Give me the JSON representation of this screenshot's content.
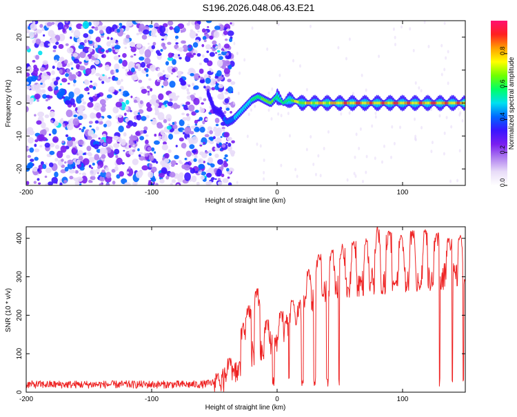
{
  "title": "S196.2026.048.06.43.E21",
  "chart_data": [
    {
      "type": "heatmap",
      "name": "spectrogram",
      "xlabel": "Height of straight line (km)",
      "ylabel": "Frequency (Hz)",
      "xlim": [
        -200,
        150
      ],
      "ylim": [
        -25,
        25
      ],
      "xticks": [
        -200,
        -100,
        0,
        100
      ],
      "yticks": [
        -20,
        -10,
        0,
        10,
        20
      ],
      "colorbar": {
        "label": "Normalized spectral amplitude",
        "range": [
          0,
          1
        ],
        "ticks": [
          0.0,
          0.2,
          0.4,
          0.6,
          0.8
        ],
        "tick_labels": [
          "0.0",
          "0.2",
          "0.4",
          "0.6",
          "0.8"
        ],
        "colors": [
          "#ffffff",
          "#e8dcf8",
          "#b080f0",
          "#7a1ff0",
          "#3a14ff",
          "#0066ff",
          "#00e0f0",
          "#00ff66",
          "#70ff00",
          "#ffff00",
          "#ffa000",
          "#ff2020",
          "#ff1070"
        ]
      },
      "ridge": {
        "x": [
          -55,
          -50,
          -45,
          -40,
          -35,
          -30,
          -25,
          -20,
          -15,
          -10,
          -5,
          0,
          5,
          10,
          20,
          30,
          40,
          50,
          60,
          70,
          80,
          90,
          100,
          110,
          120,
          130,
          140,
          150
        ],
        "y": [
          3,
          -2,
          -3,
          -6,
          -5,
          -3,
          -1,
          1,
          2,
          1,
          0,
          2,
          0,
          1,
          0,
          0,
          0,
          0,
          0,
          0,
          0,
          0,
          0,
          0,
          0,
          0,
          0,
          0
        ],
        "amplitude": [
          0.3,
          0.35,
          0.35,
          0.4,
          0.45,
          0.5,
          0.5,
          0.55,
          0.6,
          0.65,
          0.7,
          0.55,
          0.6,
          0.7,
          0.8,
          0.85,
          0.85,
          0.9,
          0.9,
          0.9,
          0.9,
          0.9,
          0.9,
          0.9,
          0.9,
          0.9,
          0.9,
          0.9
        ]
      },
      "noise_region_x": [
        -200,
        -35
      ]
    },
    {
      "type": "line",
      "name": "snr",
      "xlabel": "Height of straight line (km)",
      "ylabel": "SNR (10 * v/v)",
      "xlim": [
        -200,
        150
      ],
      "ylim": [
        0,
        430
      ],
      "xticks": [
        -200,
        -100,
        0,
        100
      ],
      "yticks": [
        0,
        100,
        200,
        300,
        400
      ],
      "color": "#ee2222",
      "series": [
        {
          "name": "SNR",
          "x": [
            -200,
            -180,
            -160,
            -140,
            -120,
            -100,
            -80,
            -60,
            -50,
            -40,
            -35,
            -30,
            -25,
            -20,
            -15,
            -10,
            -5,
            0,
            5,
            10,
            15,
            20,
            25,
            30,
            40,
            50,
            60,
            70,
            80,
            90,
            100,
            110,
            120,
            130,
            140,
            150
          ],
          "baseline": [
            20,
            20,
            20,
            20,
            20,
            20,
            20,
            20,
            25,
            30,
            40,
            60,
            80,
            100,
            110,
            120,
            130,
            140,
            160,
            180,
            200,
            220,
            235,
            245,
            260,
            270,
            280,
            285,
            290,
            290,
            290,
            295,
            295,
            300,
            300,
            305
          ]
        }
      ],
      "spikes": [
        {
          "x": -47,
          "y": 50
        },
        {
          "x": -38,
          "y": 90
        },
        {
          "x": -27,
          "y": 180
        },
        {
          "x": -23,
          "y": 225
        },
        {
          "x": -16,
          "y": 270
        },
        {
          "x": -8,
          "y": 190
        },
        {
          "x": 3,
          "y": 210
        },
        {
          "x": 12,
          "y": 240
        },
        {
          "x": 25,
          "y": 320
        },
        {
          "x": 33,
          "y": 360
        },
        {
          "x": 44,
          "y": 370
        },
        {
          "x": 52,
          "y": 385
        },
        {
          "x": 61,
          "y": 395
        },
        {
          "x": 71,
          "y": 400
        },
        {
          "x": 80,
          "y": 430
        },
        {
          "x": 89,
          "y": 420
        },
        {
          "x": 99,
          "y": 410
        },
        {
          "x": 108,
          "y": 420
        },
        {
          "x": 118,
          "y": 425
        },
        {
          "x": 127,
          "y": 415
        },
        {
          "x": 137,
          "y": 400
        },
        {
          "x": 146,
          "y": 410
        }
      ],
      "dips": [
        -3,
        10,
        20,
        30,
        40,
        50,
        60,
        70,
        79,
        89,
        99,
        109,
        119,
        129,
        139,
        148
      ],
      "dip_value": 15
    }
  ]
}
